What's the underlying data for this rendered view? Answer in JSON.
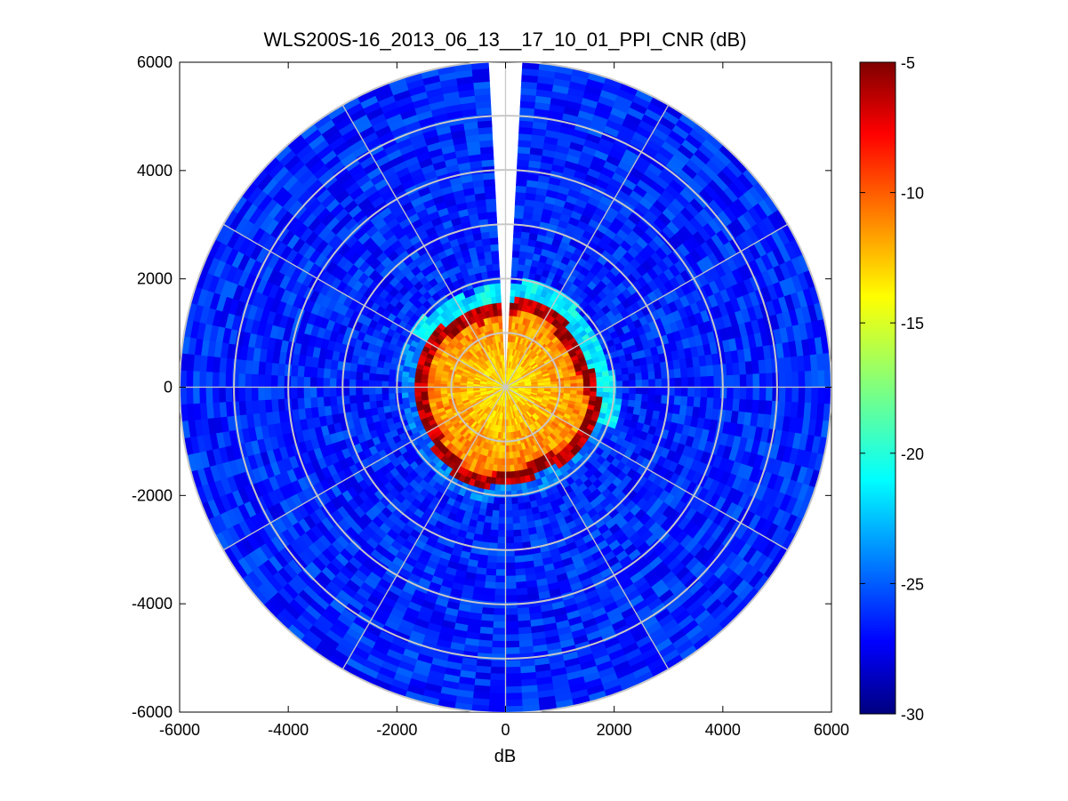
{
  "chart_data": {
    "type": "heatmap",
    "subtype": "polar-ppi",
    "title": "WLS200S-16_2013_06_13__17_10_01_PPI_CNR (dB)",
    "xlabel": "dB",
    "ylabel": "",
    "xlim": [
      -6000,
      6000
    ],
    "ylim": [
      -6000,
      6000
    ],
    "xticks": [
      "-6000",
      "-4000",
      "-2000",
      "0",
      "2000",
      "4000",
      "6000"
    ],
    "yticks": [
      "6000",
      "4000",
      "2000",
      "0",
      "-2000",
      "-4000",
      "-6000"
    ],
    "max_range": 6000,
    "range_rings": [
      1000,
      2000,
      3000,
      4000,
      5000,
      6000
    ],
    "radial_spokes_deg": [
      0,
      30,
      60,
      90,
      120,
      150,
      180,
      210,
      240,
      270,
      300,
      330
    ],
    "blind_sector_deg": [
      -4,
      4
    ],
    "colorbar": {
      "min": -30,
      "max": -5,
      "ticks": [
        "-5",
        "-10",
        "-15",
        "-20",
        "-25",
        "-30"
      ],
      "colormap": "jet"
    },
    "regions": [
      {
        "name": "near-field core",
        "range": [
          0,
          1700
        ],
        "cnr_db": -14
      },
      {
        "name": "core edge ring",
        "range": [
          1400,
          1700
        ],
        "cnr_db": -6
      },
      {
        "name": "transition halo",
        "range": [
          1700,
          2100
        ],
        "cnr_db": -21
      },
      {
        "name": "far field",
        "range": [
          2100,
          6000
        ],
        "cnr_db": -26
      }
    ]
  }
}
